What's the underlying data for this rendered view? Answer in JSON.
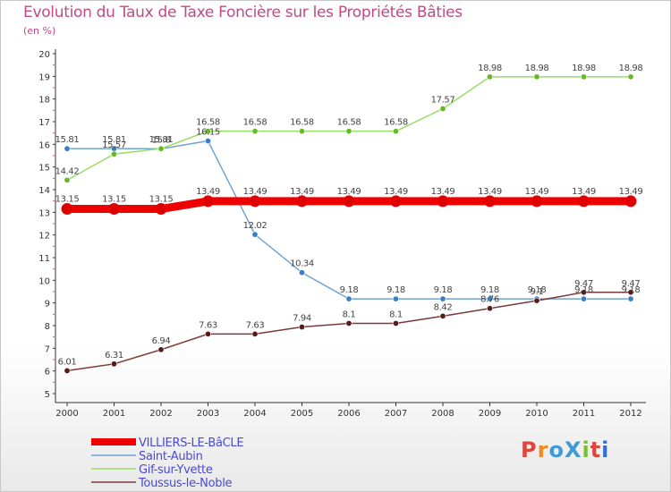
{
  "header": {
    "title": "Evolution du Taux de Taxe Foncière sur les Propriétés Bâties",
    "subtitle": "(en %)"
  },
  "logo": {
    "text": "ProXiti",
    "colors": [
      "#e0473a",
      "#f28a1e",
      "#3f9ad8",
      "#3f9ad8",
      "#7bbf2f",
      "#e0473a",
      "#2f6fd8"
    ]
  },
  "chart_data": {
    "type": "line",
    "title": "Evolution du Taux de Taxe Foncière sur les Propriétés Bâties",
    "ylabel": "(en %)",
    "xlabel": "",
    "ylim": [
      5,
      20
    ],
    "yticks": [
      5,
      6,
      7,
      8,
      9,
      10,
      11,
      12,
      13,
      14,
      15,
      16,
      17,
      18,
      19,
      20
    ],
    "x": [
      "2000",
      "2001",
      "2002",
      "2003",
      "2004",
      "2005",
      "2006",
      "2007",
      "2008",
      "2009",
      "2010",
      "2011",
      "2012"
    ],
    "grid": false,
    "legend_position": "bottom-left",
    "series": [
      {
        "name": "VILLIERS-LE-BâCLE",
        "color": "#ee0000",
        "dot": "#dd0000",
        "emphasis": true,
        "values": [
          13.15,
          13.15,
          13.15,
          13.49,
          13.49,
          13.49,
          13.49,
          13.49,
          13.49,
          13.49,
          13.49,
          13.49,
          13.49
        ],
        "labels": [
          "13.15",
          "13.15",
          "13.15",
          "13.49",
          "13.49",
          "13.49",
          "13.49",
          "13.49",
          "13.49",
          "13.49",
          "13.49",
          "13.49",
          "13.49"
        ]
      },
      {
        "name": "Saint-Aubin",
        "color": "#6fa3d6",
        "dot": "#3a7fc0",
        "emphasis": false,
        "values": [
          15.81,
          15.81,
          15.8,
          16.15,
          12.02,
          10.34,
          9.18,
          9.18,
          9.18,
          9.18,
          9.18,
          9.18,
          9.18
        ],
        "labels": [
          "15.81",
          "15.81",
          "15.8",
          "16.15",
          "12.02",
          "10.34",
          "9.18",
          "9.18",
          "9.18",
          "9.18",
          "9.18",
          "9.18",
          "9.18"
        ]
      },
      {
        "name": "Gif-sur-Yvette",
        "color": "#99dd66",
        "dot": "#66bb22",
        "emphasis": false,
        "values": [
          14.42,
          15.57,
          15.81,
          16.58,
          16.58,
          16.58,
          16.58,
          16.58,
          17.57,
          18.98,
          18.98,
          18.98,
          18.98
        ],
        "labels": [
          "14.42",
          "15.57",
          "15.81",
          "16.58",
          "16.58",
          "16.58",
          "16.58",
          "16.58",
          "17.57",
          "18.98",
          "18.98",
          "18.98",
          "18.98"
        ]
      },
      {
        "name": "Toussus-le-Noble",
        "color": "#7a3a3a",
        "dot": "#5a1a1a",
        "emphasis": false,
        "values": [
          6.01,
          6.31,
          6.94,
          7.63,
          7.63,
          7.94,
          8.1,
          8.1,
          8.42,
          8.76,
          9.1,
          9.47,
          9.47
        ],
        "labels": [
          "6.01",
          "6.31",
          "6.94",
          "7.63",
          "7.63",
          "7.94",
          "8.1",
          "8.1",
          "8.42",
          "8.76",
          "9.1",
          "9.47",
          "9.47"
        ]
      }
    ]
  }
}
